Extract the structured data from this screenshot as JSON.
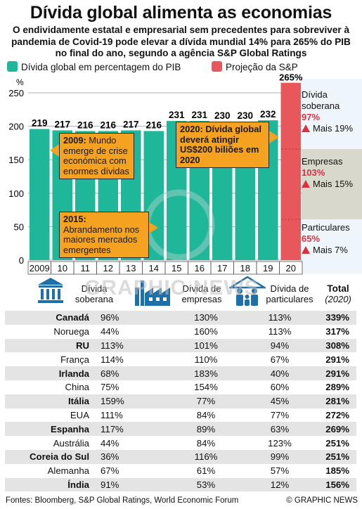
{
  "header": {
    "title": "Dívida global alimenta as economias",
    "subtitle": "O endividamente estatal e empresarial sem precedentes para sobreviver à pandemia de Covid-19 pode elevar a dívida mundial 14% para 265% do PIB no final do ano, segundo a agência S&P Global Ratings"
  },
  "legend": {
    "actual_label": "Dívida global em percentagem do PIB",
    "projection_label": "Projeção da S&P"
  },
  "colors": {
    "actual": "#1fb79a",
    "projection": "#e8575a",
    "note": "#f4a21f",
    "accent_red": "#d9323f",
    "panel_blue": "#eef5fb",
    "panel_grey": "#d8d8cc"
  },
  "chart_data": {
    "type": "bar",
    "ylabel": "%",
    "ylim": [
      0,
      250
    ],
    "yticks": [
      0,
      50,
      100,
      150,
      200,
      250
    ],
    "categories": [
      "2009",
      "10",
      "11",
      "12",
      "13",
      "14",
      "15",
      "16",
      "17",
      "18",
      "19",
      "20"
    ],
    "values": [
      219,
      217,
      216,
      216,
      217,
      216,
      231,
      231,
      230,
      230,
      232,
      265
    ],
    "value_labels": [
      "219",
      "217",
      "216",
      "216",
      "217",
      "216",
      "231",
      "231",
      "230",
      "230",
      "232",
      "265%"
    ],
    "projected": [
      false,
      false,
      false,
      false,
      false,
      false,
      false,
      false,
      false,
      false,
      false,
      true
    ],
    "grid": true
  },
  "notes": {
    "n2009_year": "2009:",
    "n2009_text": "Mundo emerge de crise económica com enormes dívidas",
    "n2015_year": "2015:",
    "n2015_text": "Abrandamento nos maiores mercados emergentes",
    "n2020_text": "2020: Dívida global deverá atingir US$200 biliões em 2020"
  },
  "breakdown": {
    "sovereign_label": "Dívida soberana",
    "sovereign_pct": "97%",
    "sovereign_change": "Mais 19%",
    "corporate_label": "Empresas",
    "corporate_pct": "103%",
    "corporate_change": "Mais 15%",
    "household_label": "Particulares",
    "household_pct": "65%",
    "household_change": "Mais 7%"
  },
  "table": {
    "col_sovereign": "Dívida soberana",
    "col_corporate": "Dívida de empresas",
    "col_household": "Dívida de particulares",
    "col_total": "Total",
    "col_total_sub": "(2020)",
    "rows": [
      {
        "country": "Canadá",
        "bold": true,
        "sov": "96%",
        "corp": "130%",
        "hh": "113%",
        "total": "339%"
      },
      {
        "country": "Noruega",
        "bold": false,
        "sov": "44%",
        "corp": "160%",
        "hh": "113%",
        "total": "317%"
      },
      {
        "country": "RU",
        "bold": true,
        "sov": "113%",
        "corp": "101%",
        "hh": "94%",
        "total": "308%"
      },
      {
        "country": "França",
        "bold": false,
        "sov": "114%",
        "corp": "110%",
        "hh": "67%",
        "total": "291%"
      },
      {
        "country": "Irlanda",
        "bold": true,
        "sov": "68%",
        "corp": "183%",
        "hh": "40%",
        "total": "291%"
      },
      {
        "country": "China",
        "bold": false,
        "sov": "75%",
        "corp": "154%",
        "hh": "60%",
        "total": "289%"
      },
      {
        "country": "Itália",
        "bold": true,
        "sov": "159%",
        "corp": "77%",
        "hh": "45%",
        "total": "281%"
      },
      {
        "country": "EUA",
        "bold": false,
        "sov": "111%",
        "corp": "84%",
        "hh": "77%",
        "total": "272%"
      },
      {
        "country": "Espanha",
        "bold": true,
        "sov": "117%",
        "corp": "89%",
        "hh": "63%",
        "total": "269%"
      },
      {
        "country": "Austrália",
        "bold": false,
        "sov": "44%",
        "corp": "84%",
        "hh": "123%",
        "total": "251%"
      },
      {
        "country": "Coreia do Sul",
        "bold": true,
        "sov": "36%",
        "corp": "116%",
        "hh": "99%",
        "total": "251%"
      },
      {
        "country": "Alemanha",
        "bold": false,
        "sov": "67%",
        "corp": "61%",
        "hh": "57%",
        "total": "185%"
      },
      {
        "country": "Índia",
        "bold": true,
        "sov": "91%",
        "corp": "53%",
        "hh": "12%",
        "total": "156%"
      }
    ]
  },
  "footer": {
    "source": "Fontes: Bloomberg, S&P Global Ratings, World Economic Forum",
    "credit": "© GRAPHIC NEWS"
  },
  "icons": {
    "sovereign": "government-building-icon",
    "corporate": "factory-icon",
    "household": "family-icon",
    "triangle": "up-triangle-icon"
  },
  "watermark": {
    "logo": "GN",
    "text": "GRAPHIC NEWS"
  }
}
